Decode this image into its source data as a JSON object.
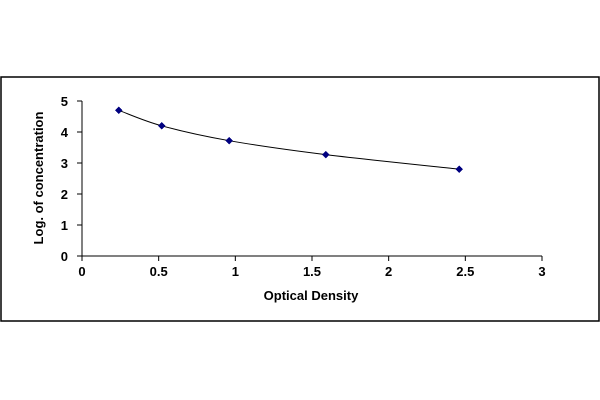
{
  "chart_data": {
    "type": "scatter",
    "title": "",
    "xlabel": "Optical Density",
    "ylabel": "Log. of concentration",
    "xlim": [
      0,
      3
    ],
    "ylim": [
      0,
      5
    ],
    "x_ticks": [
      "0",
      "0.5",
      "1",
      "1.5",
      "2",
      "2.5",
      "3"
    ],
    "y_ticks": [
      "0",
      "1",
      "2",
      "3",
      "4",
      "5"
    ],
    "grid": false,
    "legend": "none",
    "trendline": "smooth curve through points",
    "series": [
      {
        "x": [
          0.24,
          0.52,
          0.96,
          1.59,
          2.46
        ],
        "y": [
          4.7,
          4.2,
          3.72,
          3.27,
          2.8
        ]
      }
    ],
    "colors": {
      "marker": "#000080",
      "line": "#000000",
      "frame": "#000000"
    }
  }
}
